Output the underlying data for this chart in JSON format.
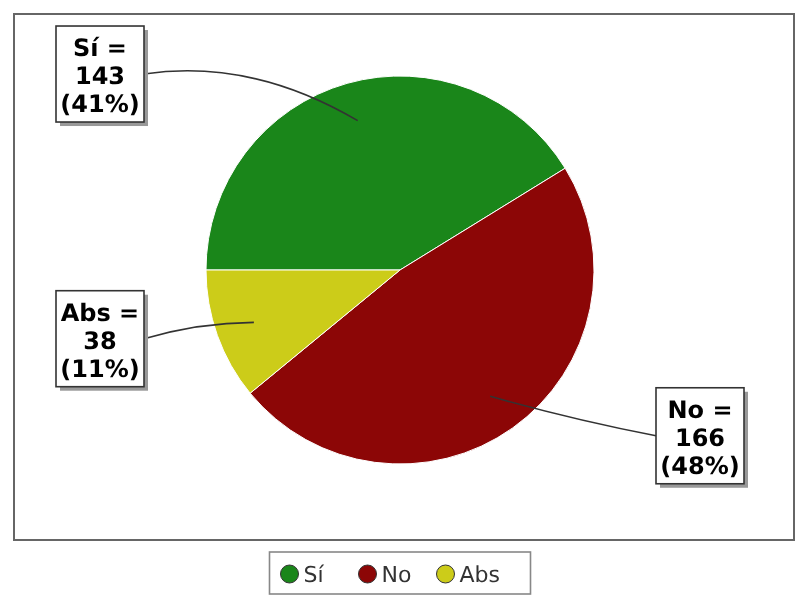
{
  "chart_data": {
    "type": "pie",
    "categories": [
      "Sí",
      "No",
      "Abs"
    ],
    "values": [
      143,
      166,
      38
    ],
    "colors": [
      "#1a861a",
      "#8c0606",
      "#cccc19"
    ],
    "value_labels": [
      "Sí =\n143\n(41%)",
      "No =\n166\n(48%)",
      "Abs =\n38\n(11%)"
    ],
    "legend": "bottom"
  }
}
